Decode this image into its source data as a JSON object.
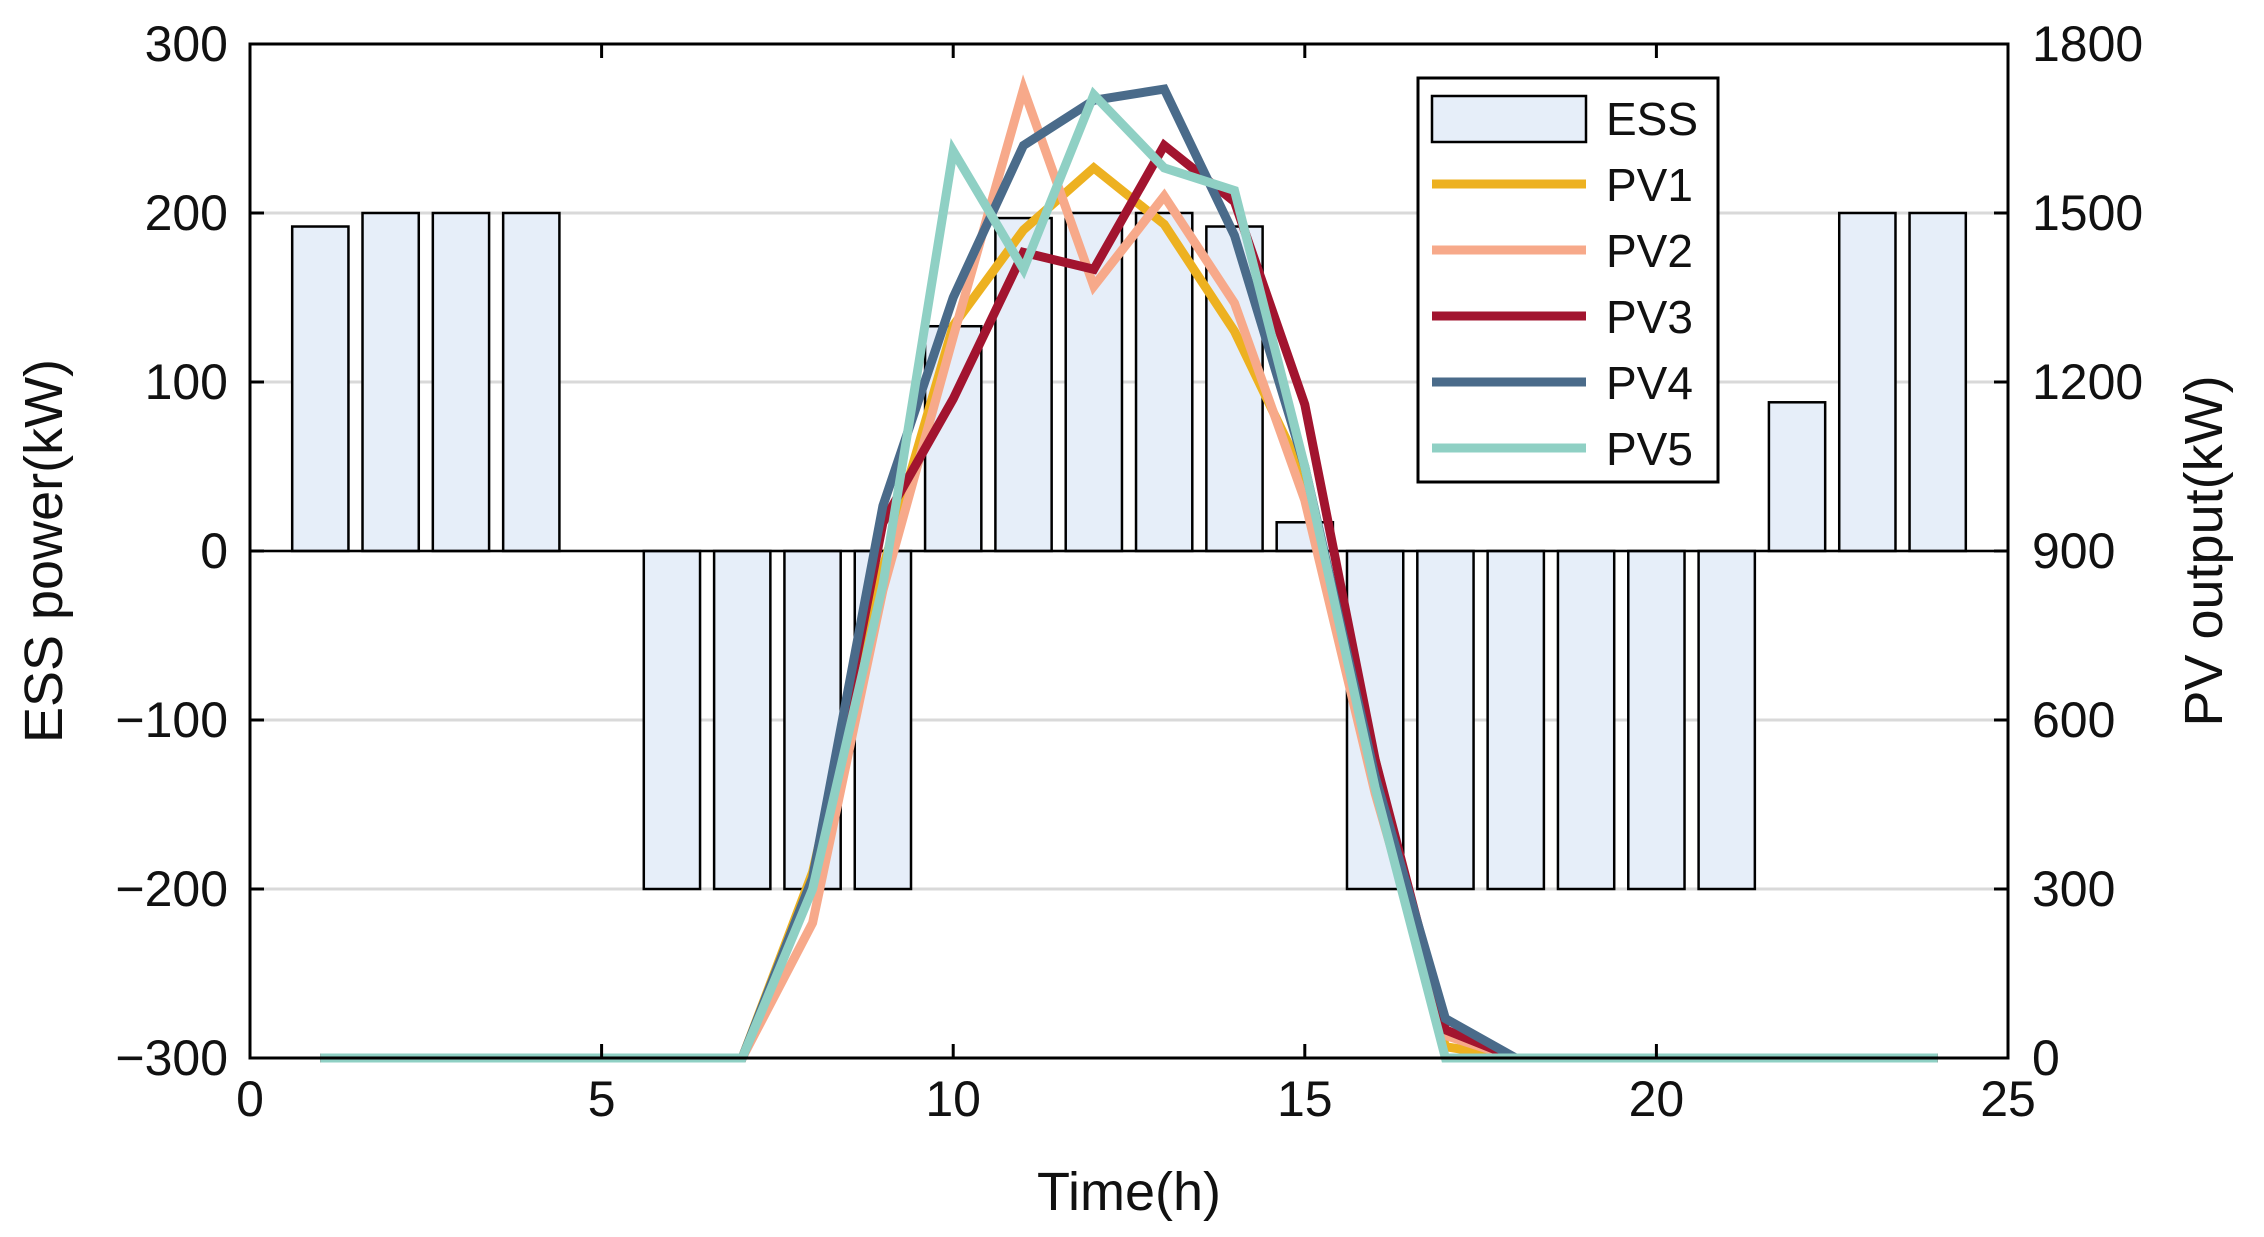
{
  "chart_data": {
    "type": "bar+line",
    "xlabel": "Time(h)",
    "ylabel_left": "ESS power(kW)",
    "ylabel_right": "PV output(kW)",
    "xlim": [
      0,
      25
    ],
    "ylim_left": [
      -300,
      300
    ],
    "ylim_right": [
      0,
      1800
    ],
    "x_ticks": [
      0,
      5,
      10,
      15,
      20,
      25
    ],
    "y_ticks_left": [
      -300,
      -200,
      -100,
      0,
      100,
      200,
      300
    ],
    "y_ticks_left_labels": [
      "−300",
      "−200",
      "−100",
      "0",
      "100",
      "200",
      "300"
    ],
    "y_ticks_right": [
      0,
      300,
      600,
      900,
      1200,
      1500,
      1800
    ],
    "grid": true,
    "legend_position": "top-right",
    "bars": {
      "name": "ESS",
      "color": "#e6eef9",
      "edge_color": "#000000",
      "x": [
        1,
        2,
        3,
        4,
        5,
        6,
        7,
        8,
        9,
        10,
        11,
        12,
        13,
        14,
        15,
        16,
        17,
        18,
        19,
        20,
        21,
        22,
        23,
        24
      ],
      "values": [
        192,
        200,
        200,
        200,
        0,
        -200,
        -200,
        -200,
        -200,
        133,
        197,
        200,
        200,
        192,
        17,
        -200,
        -200,
        -200,
        -200,
        -200,
        -200,
        88,
        200,
        200
      ]
    },
    "series": [
      {
        "name": "PV1",
        "color": "#edb120",
        "x": [
          1,
          2,
          3,
          4,
          5,
          6,
          7,
          8,
          9,
          10,
          11,
          12,
          13,
          14,
          15,
          16,
          17,
          18,
          19,
          20,
          21,
          22,
          23,
          24
        ],
        "values": [
          0,
          0,
          0,
          0,
          0,
          0,
          0,
          330,
          870,
          1300,
          1470,
          1580,
          1480,
          1290,
          1030,
          530,
          20,
          0,
          0,
          0,
          0,
          0,
          0,
          0
        ]
      },
      {
        "name": "PV2",
        "color": "#f7a98a",
        "x": [
          1,
          2,
          3,
          4,
          5,
          6,
          7,
          8,
          9,
          10,
          11,
          12,
          13,
          14,
          15,
          16,
          17,
          18,
          19,
          20,
          21,
          22,
          23,
          24
        ],
        "values": [
          0,
          0,
          0,
          0,
          0,
          0,
          0,
          240,
          830,
          1280,
          1720,
          1370,
          1530,
          1340,
          990,
          470,
          40,
          0,
          0,
          0,
          0,
          0,
          0,
          0
        ]
      },
      {
        "name": "PV3",
        "color": "#a2142f",
        "x": [
          1,
          2,
          3,
          4,
          5,
          6,
          7,
          8,
          9,
          10,
          11,
          12,
          13,
          14,
          15,
          16,
          17,
          18,
          19,
          20,
          21,
          22,
          23,
          24
        ],
        "values": [
          0,
          0,
          0,
          0,
          0,
          0,
          0,
          310,
          950,
          1170,
          1430,
          1400,
          1620,
          1520,
          1160,
          530,
          50,
          0,
          0,
          0,
          0,
          0,
          0,
          0
        ]
      },
      {
        "name": "PV4",
        "color": "#4a6b8a",
        "x": [
          1,
          2,
          3,
          4,
          5,
          6,
          7,
          8,
          9,
          10,
          11,
          12,
          13,
          14,
          15,
          16,
          17,
          18,
          19,
          20,
          21,
          22,
          23,
          24
        ],
        "values": [
          0,
          0,
          0,
          0,
          0,
          0,
          0,
          320,
          980,
          1350,
          1620,
          1700,
          1720,
          1460,
          1050,
          500,
          70,
          0,
          0,
          0,
          0,
          0,
          0,
          0
        ]
      },
      {
        "name": "PV5",
        "color": "#8fd0c4",
        "x": [
          1,
          2,
          3,
          4,
          5,
          6,
          7,
          8,
          9,
          10,
          11,
          12,
          13,
          14,
          15,
          16,
          17,
          18,
          19,
          20,
          21,
          22,
          23,
          24
        ],
        "values": [
          0,
          0,
          0,
          0,
          0,
          0,
          0,
          300,
          840,
          1610,
          1400,
          1710,
          1580,
          1540,
          1050,
          480,
          0,
          0,
          0,
          0,
          0,
          0,
          0,
          0
        ]
      }
    ]
  }
}
